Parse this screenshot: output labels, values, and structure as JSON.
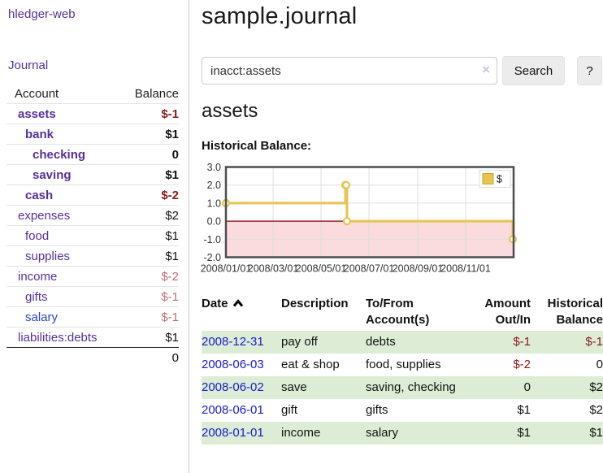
{
  "app": {
    "title": "hledger-web"
  },
  "nav": {
    "journal": "Journal"
  },
  "sidebar": {
    "header": {
      "account": "Account",
      "balance": "Balance"
    },
    "accounts": [
      {
        "name": "assets",
        "balance": "$-1",
        "depth": 1
      },
      {
        "name": "bank",
        "balance": "$1",
        "depth": 2
      },
      {
        "name": "checking",
        "balance": "0",
        "depth": 3
      },
      {
        "name": "saving",
        "balance": "$1",
        "depth": 3
      },
      {
        "name": "cash",
        "balance": "$-2",
        "depth": 2
      },
      {
        "name": "expenses",
        "balance": "$2",
        "depth": 1
      },
      {
        "name": "food",
        "balance": "$1",
        "depth": 2
      },
      {
        "name": "supplies",
        "balance": "$1",
        "depth": 2
      },
      {
        "name": "income",
        "balance": "$-2",
        "depth": 1
      },
      {
        "name": "gifts",
        "balance": "$-1",
        "depth": 2
      },
      {
        "name": "salary",
        "balance": "$-1",
        "depth": 2
      },
      {
        "name": "liabilities:debts",
        "balance": "$1",
        "depth": 1
      }
    ],
    "total": "0"
  },
  "main": {
    "title": "sample.journal",
    "account_title": "assets",
    "chart_label": "Historical Balance:"
  },
  "search": {
    "value": "inacct:assets",
    "clear": "×",
    "button": "Search",
    "help": "?"
  },
  "chart_data": {
    "type": "line",
    "title": "Historical Balance:",
    "step": true,
    "x_domain": [
      "2008-01-01",
      "2009-01-01"
    ],
    "ylim": [
      -2,
      3
    ],
    "y_ticks": [
      3.0,
      2.0,
      1.0,
      0.0,
      -1.0,
      -2.0
    ],
    "x_ticks": [
      "2008/01/01",
      "2008/03/01",
      "2008/05/01",
      "2008/07/01",
      "2008/09/01",
      "2008/11/01"
    ],
    "series": [
      {
        "name": "$",
        "color": "#e7c44f",
        "points": [
          [
            "2008-01-01",
            1
          ],
          [
            "2008-06-01",
            2
          ],
          [
            "2008-06-02",
            2
          ],
          [
            "2008-06-03",
            0
          ],
          [
            "2008-12-31",
            -1
          ]
        ]
      }
    ],
    "legend": {
      "label": "$",
      "position": "top-right"
    },
    "grid": true,
    "negative_region_color": "#fadbde",
    "zero_line_color": "#8b0000",
    "border_color": "#4d4d4d"
  },
  "table": {
    "headers": {
      "date": "Date",
      "description": "Description",
      "tofrom": "To/From Account(s)",
      "amount": "Amount Out/In",
      "balance": "Historical Balance"
    },
    "rows": [
      {
        "date": "2008-12-31",
        "description": "pay off",
        "accounts": "debts",
        "amount": "$-1",
        "balance": "$-1"
      },
      {
        "date": "2008-06-03",
        "description": "eat & shop",
        "accounts": "food, supplies",
        "amount": "$-2",
        "balance": "0"
      },
      {
        "date": "2008-06-02",
        "description": "save",
        "accounts": "saving, checking",
        "amount": "0",
        "balance": "$2"
      },
      {
        "date": "2008-06-01",
        "description": "gift",
        "accounts": "gifts",
        "amount": "$1",
        "balance": "$2"
      },
      {
        "date": "2008-01-01",
        "description": "income",
        "accounts": "salary",
        "amount": "$1",
        "balance": "$1"
      }
    ]
  }
}
